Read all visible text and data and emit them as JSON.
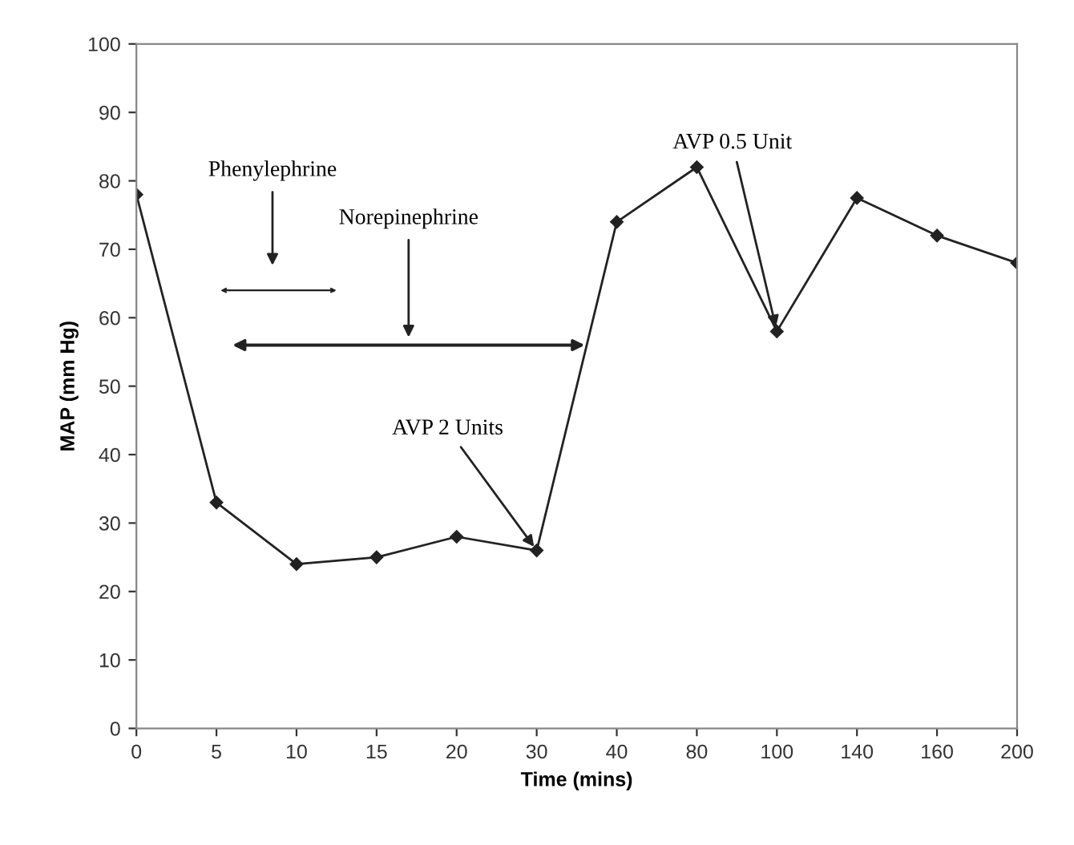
{
  "chart_data": {
    "type": "line",
    "xlabel": "Time (mins)",
    "ylabel": "MAP (mm Hg)",
    "categories": [
      "0",
      "5",
      "10",
      "15",
      "20",
      "30",
      "40",
      "80",
      "100",
      "140",
      "160",
      "200"
    ],
    "series": [
      {
        "color": "#222222",
        "values": [
          78,
          33,
          24,
          25,
          28,
          26,
          74,
          82,
          58,
          77.5,
          72,
          68
        ]
      }
    ],
    "ylim": [
      0,
      100
    ],
    "yticks": [
      0,
      10,
      20,
      30,
      40,
      50,
      60,
      70,
      80,
      90,
      100
    ],
    "marker": "diamond",
    "line_style": "solid",
    "grid": false,
    "legend": false,
    "annotations": [
      "Phenylephrine",
      "Norepinephrine",
      {
        "text": "AVP 2 Units",
        "x": "30",
        "y": 26
      },
      {
        "text": "AVP 0.5 Unit",
        "x": "100",
        "y": 58
      }
    ]
  }
}
